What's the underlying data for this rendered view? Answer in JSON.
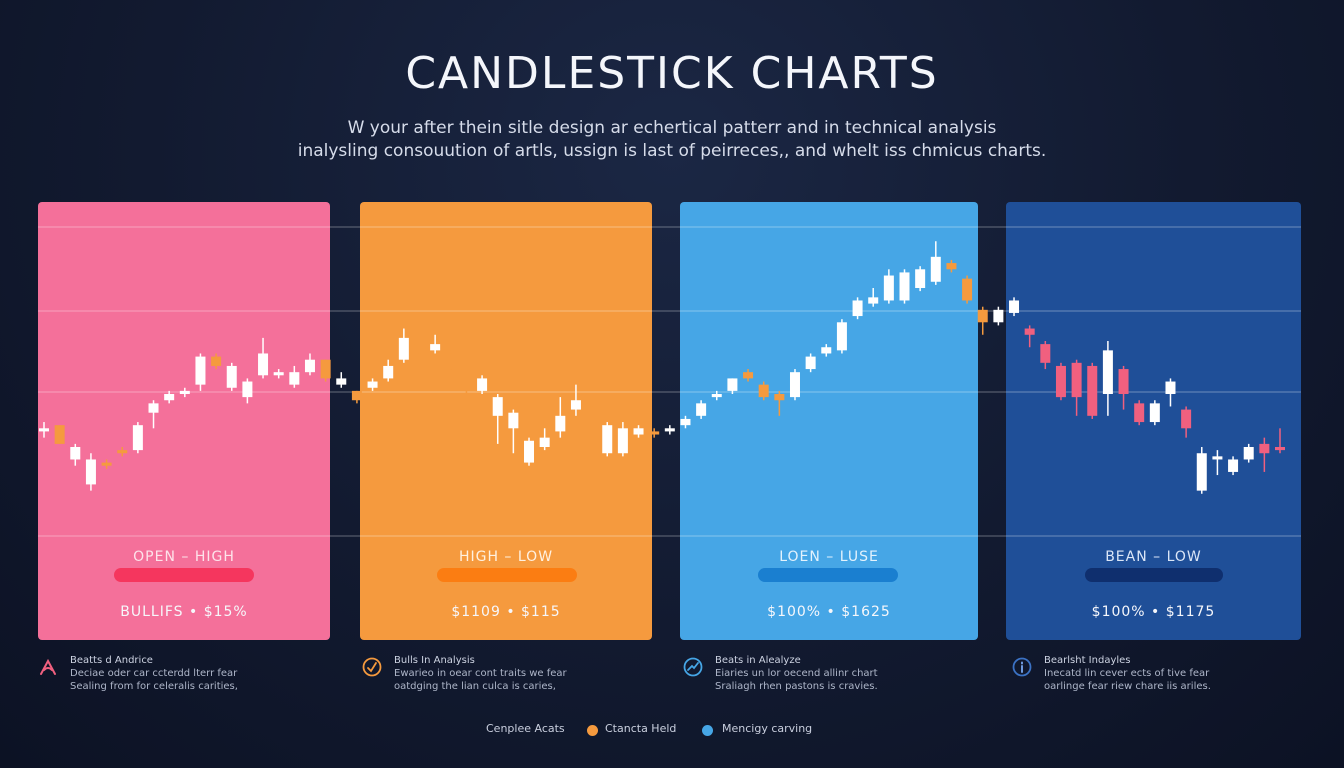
{
  "title": "CANDLESTICK CHARTS",
  "subtitle_lines": [
    "W your after thein sitle design ar echertical patterr and in technical analysis",
    "inalysling consouution of artls, ussign is last of peirreces,, and whelt iss chmicus charts."
  ],
  "panels": [
    {
      "label": "OPEN  –  HIGH",
      "value": "BULLIFS  •  $15%",
      "color": "#f4709a",
      "pill_color": "#f5365e"
    },
    {
      "label": "HIGH  –  LOW",
      "value": "$1109  •  $115",
      "color": "#f59a3e",
      "pill_color": "#fb7d12"
    },
    {
      "label": "LOEN  –  LUSE",
      "value": "$100%  •  $1625",
      "color": "#46a6e6",
      "pill_color": "#1a7fd0"
    },
    {
      "label": "BEAN  –  LOW",
      "value": "$100%  •  $1175",
      "color": "#1f4f98",
      "pill_color": "#0f2f6e"
    }
  ],
  "legend": [
    {
      "icon": "bull-icon",
      "icon_color": "#f0607f",
      "head": "Beatts d Andrice",
      "lines": [
        "Deciae oder car ccterdd lterr fear",
        "Sealing from for celeralis carities,"
      ]
    },
    {
      "icon": "checkmark-icon",
      "icon_color": "#f59a3e",
      "head": "Bulls In Analysis",
      "lines": [
        "Ewarieo in oear cont traits we fear",
        "oatdging the lian culca is caries,"
      ]
    },
    {
      "icon": "chart-icon",
      "icon_color": "#46a6e6",
      "head": "Beats in Alealyze",
      "lines": [
        "Eiaries un lor oecend allinr chart",
        "Sraliagh rhen pastons is cravies."
      ]
    },
    {
      "icon": "info-icon",
      "icon_color": "#3b72c4",
      "head": "Bearlsht Indayles",
      "lines": [
        "Inecatd lin cever ects of tive fear",
        "oarlinge fear riew chare iis ariles."
      ]
    }
  ],
  "key": [
    {
      "label": "Cenplee Acats",
      "color": ""
    },
    {
      "label": "Ctancta Held",
      "color": "#f59a3e"
    },
    {
      "label": "Mencigy carving",
      "color": "#46a6e6"
    }
  ],
  "chart_data": {
    "type": "candlestick",
    "grid": true,
    "candles": [
      {
        "o": 47,
        "c": 48,
        "h": 50,
        "l": 45,
        "color": "#ffffff"
      },
      {
        "o": 49,
        "c": 43,
        "h": 49,
        "l": 43,
        "color": "#f59a3e"
      },
      {
        "o": 42,
        "c": 38,
        "h": 43,
        "l": 36,
        "color": "#ffffff"
      },
      {
        "o": 38,
        "c": 30,
        "h": 40,
        "l": 28,
        "color": "#ffffff"
      },
      {
        "o": 36,
        "c": 37,
        "h": 38,
        "l": 35,
        "color": "#f59a3e"
      },
      {
        "o": 40,
        "c": 41,
        "h": 42,
        "l": 39,
        "color": "#f59a3e"
      },
      {
        "o": 41,
        "c": 49,
        "h": 50,
        "l": 40,
        "color": "#ffffff"
      },
      {
        "o": 53,
        "c": 56,
        "h": 57,
        "l": 48,
        "color": "#ffffff"
      },
      {
        "o": 57,
        "c": 59,
        "h": 60,
        "l": 56,
        "color": "#ffffff"
      },
      {
        "o": 59,
        "c": 60,
        "h": 61,
        "l": 58,
        "color": "#ffffff"
      },
      {
        "o": 62,
        "c": 71,
        "h": 72,
        "l": 60,
        "color": "#ffffff"
      },
      {
        "o": 71,
        "c": 68,
        "h": 72,
        "l": 67,
        "color": "#f59a3e"
      },
      {
        "o": 68,
        "c": 61,
        "h": 69,
        "l": 60,
        "color": "#ffffff"
      },
      {
        "o": 63,
        "c": 58,
        "h": 64,
        "l": 56,
        "color": "#ffffff"
      },
      {
        "o": 65,
        "c": 72,
        "h": 77,
        "l": 64,
        "color": "#ffffff"
      },
      {
        "o": 66,
        "c": 65,
        "h": 67,
        "l": 64,
        "color": "#ffffff"
      },
      {
        "o": 62,
        "c": 66,
        "h": 68,
        "l": 61,
        "color": "#ffffff"
      },
      {
        "o": 66,
        "c": 70,
        "h": 72,
        "l": 65,
        "color": "#ffffff"
      },
      {
        "o": 70,
        "c": 64,
        "h": 70,
        "l": 63,
        "color": "#f59a3e"
      },
      {
        "o": 64,
        "c": 62,
        "h": 66,
        "l": 61,
        "color": "#ffffff"
      },
      {
        "o": 60,
        "c": 57,
        "h": 60,
        "l": 56,
        "color": "#f59a3e"
      },
      {
        "o": 61,
        "c": 63,
        "h": 64,
        "l": 60,
        "color": "#ffffff"
      },
      {
        "o": 64,
        "c": 68,
        "h": 70,
        "l": 63,
        "color": "#ffffff"
      },
      {
        "o": 70,
        "c": 77,
        "h": 80,
        "l": 69,
        "color": "#ffffff"
      },
      {
        "o": 75,
        "c": 72,
        "h": 76,
        "l": 71,
        "color": "#f59a3e"
      },
      {
        "o": 73,
        "c": 75,
        "h": 78,
        "l": 72,
        "color": "#ffffff"
      },
      {
        "o": 72,
        "c": 67,
        "h": 73,
        "l": 66,
        "color": "#f59a3e"
      },
      {
        "o": 67,
        "c": 62,
        "h": 67,
        "l": 56,
        "color": "#f59a3e"
      },
      {
        "o": 64,
        "c": 60,
        "h": 65,
        "l": 59,
        "color": "#ffffff"
      },
      {
        "o": 58,
        "c": 52,
        "h": 59,
        "l": 43,
        "color": "#ffffff"
      },
      {
        "o": 48,
        "c": 53,
        "h": 54,
        "l": 40,
        "color": "#ffffff"
      },
      {
        "o": 44,
        "c": 37,
        "h": 45,
        "l": 36,
        "color": "#ffffff"
      },
      {
        "o": 42,
        "c": 45,
        "h": 48,
        "l": 41,
        "color": "#ffffff"
      },
      {
        "o": 47,
        "c": 52,
        "h": 58,
        "l": 45,
        "color": "#ffffff"
      },
      {
        "o": 54,
        "c": 57,
        "h": 62,
        "l": 52,
        "color": "#ffffff"
      },
      {
        "o": 55,
        "c": 45,
        "h": 56,
        "l": 44,
        "color": "#f59a3e"
      },
      {
        "o": 49,
        "c": 40,
        "h": 50,
        "l": 39,
        "color": "#ffffff"
      },
      {
        "o": 40,
        "c": 48,
        "h": 50,
        "l": 39,
        "color": "#ffffff"
      },
      {
        "o": 48,
        "c": 46,
        "h": 49,
        "l": 45,
        "color": "#ffffff"
      },
      {
        "o": 46,
        "c": 47,
        "h": 48,
        "l": 45,
        "color": "#f59a3e"
      },
      {
        "o": 47,
        "c": 48,
        "h": 49,
        "l": 46,
        "color": "#ffffff"
      },
      {
        "o": 49,
        "c": 51,
        "h": 52,
        "l": 48,
        "color": "#ffffff"
      },
      {
        "o": 52,
        "c": 56,
        "h": 57,
        "l": 51,
        "color": "#ffffff"
      },
      {
        "o": 58,
        "c": 59,
        "h": 60,
        "l": 57,
        "color": "#ffffff"
      },
      {
        "o": 60,
        "c": 64,
        "h": 64,
        "l": 59,
        "color": "#ffffff"
      },
      {
        "o": 64,
        "c": 66,
        "h": 67,
        "l": 63,
        "color": "#f59a3e"
      },
      {
        "o": 62,
        "c": 58,
        "h": 63,
        "l": 57,
        "color": "#f59a3e"
      },
      {
        "o": 59,
        "c": 57,
        "h": 60,
        "l": 52,
        "color": "#f59a3e"
      },
      {
        "o": 58,
        "c": 66,
        "h": 67,
        "l": 57,
        "color": "#ffffff"
      },
      {
        "o": 67,
        "c": 71,
        "h": 72,
        "l": 66,
        "color": "#ffffff"
      },
      {
        "o": 72,
        "c": 74,
        "h": 75,
        "l": 71,
        "color": "#ffffff"
      },
      {
        "o": 73,
        "c": 82,
        "h": 83,
        "l": 72,
        "color": "#ffffff"
      },
      {
        "o": 84,
        "c": 89,
        "h": 90,
        "l": 83,
        "color": "#ffffff"
      },
      {
        "o": 88,
        "c": 90,
        "h": 93,
        "l": 87,
        "color": "#ffffff"
      },
      {
        "o": 89,
        "c": 97,
        "h": 99,
        "l": 88,
        "color": "#ffffff"
      },
      {
        "o": 89,
        "c": 98,
        "h": 99,
        "l": 88,
        "color": "#ffffff"
      },
      {
        "o": 93,
        "c": 99,
        "h": 100,
        "l": 92,
        "color": "#ffffff"
      },
      {
        "o": 95,
        "c": 103,
        "h": 108,
        "l": 94,
        "color": "#ffffff"
      },
      {
        "o": 101,
        "c": 99,
        "h": 102,
        "l": 98,
        "color": "#f59a3e"
      },
      {
        "o": 96,
        "c": 89,
        "h": 97,
        "l": 88,
        "color": "#f59a3e"
      },
      {
        "o": 86,
        "c": 82,
        "h": 87,
        "l": 78,
        "color": "#f59a3e"
      },
      {
        "o": 82,
        "c": 86,
        "h": 87,
        "l": 81,
        "color": "#ffffff"
      },
      {
        "o": 85,
        "c": 89,
        "h": 90,
        "l": 84,
        "color": "#ffffff"
      },
      {
        "o": 80,
        "c": 78,
        "h": 81,
        "l": 74,
        "color": "#f0607f"
      },
      {
        "o": 75,
        "c": 69,
        "h": 76,
        "l": 67,
        "color": "#f0607f"
      },
      {
        "o": 68,
        "c": 58,
        "h": 69,
        "l": 57,
        "color": "#f0607f"
      },
      {
        "o": 69,
        "c": 58,
        "h": 70,
        "l": 52,
        "color": "#f0607f"
      },
      {
        "o": 68,
        "c": 52,
        "h": 69,
        "l": 51,
        "color": "#f0607f"
      },
      {
        "o": 73,
        "c": 59,
        "h": 76,
        "l": 52,
        "color": "#ffffff"
      },
      {
        "o": 67,
        "c": 59,
        "h": 68,
        "l": 54,
        "color": "#f0607f"
      },
      {
        "o": 56,
        "c": 50,
        "h": 57,
        "l": 49,
        "color": "#f0607f"
      },
      {
        "o": 50,
        "c": 56,
        "h": 57,
        "l": 49,
        "color": "#ffffff"
      },
      {
        "o": 59,
        "c": 63,
        "h": 64,
        "l": 55,
        "color": "#ffffff"
      },
      {
        "o": 54,
        "c": 48,
        "h": 55,
        "l": 45,
        "color": "#f0607f"
      },
      {
        "o": 40,
        "c": 28,
        "h": 42,
        "l": 27,
        "color": "#ffffff"
      },
      {
        "o": 38,
        "c": 39,
        "h": 41,
        "l": 33,
        "color": "#ffffff"
      },
      {
        "o": 34,
        "c": 38,
        "h": 39,
        "l": 33,
        "color": "#ffffff"
      },
      {
        "o": 38,
        "c": 42,
        "h": 43,
        "l": 37,
        "color": "#ffffff"
      },
      {
        "o": 43,
        "c": 40,
        "h": 45,
        "l": 34,
        "color": "#f0607f"
      },
      {
        "o": 41,
        "c": 42,
        "h": 48,
        "l": 40,
        "color": "#f0607f"
      }
    ]
  }
}
